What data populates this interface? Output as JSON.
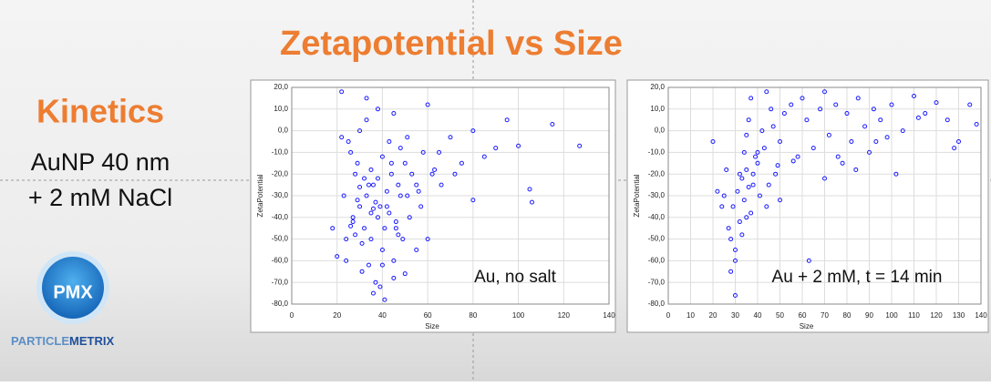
{
  "slide": {
    "title": "Zetapotential vs Size",
    "heading": "Kinetics",
    "lines": [
      "AuNP 40 nm",
      "+ 2 mM NaCl"
    ],
    "logo": "PMX",
    "brand": [
      "PARTICLE",
      "METRIX"
    ]
  },
  "chart_data": [
    {
      "type": "scatter",
      "x_label": "Size",
      "y_label": "ZetaPotential",
      "annotation": "Au, no salt",
      "color": "#1a1aff",
      "grid": true,
      "xlim": [
        0,
        140
      ],
      "xticks": [
        0,
        20,
        40,
        60,
        80,
        100,
        120,
        140
      ],
      "ylim": [
        -80,
        20
      ],
      "yticks": [
        {
          "value": 20,
          "label": "20,0"
        },
        {
          "value": 10,
          "label": "10,0"
        },
        {
          "value": 0,
          "label": "0,0"
        },
        {
          "value": -10,
          "label": "-10,0"
        },
        {
          "value": -20,
          "label": "-20,0"
        },
        {
          "value": -30,
          "label": "-30,0"
        },
        {
          "value": -40,
          "label": "-40,0"
        },
        {
          "value": -50,
          "label": "-50,0"
        },
        {
          "value": -60,
          "label": "-60,0"
        },
        {
          "value": -70,
          "label": "-70,0"
        },
        {
          "value": -80,
          "label": "-80,0"
        }
      ],
      "x": [
        22,
        25,
        28,
        30,
        32,
        33,
        35,
        36,
        38,
        40,
        42,
        44,
        46,
        48,
        50,
        52,
        55,
        58,
        60,
        24,
        27,
        29,
        31,
        34,
        37,
        39,
        41,
        43,
        45,
        47,
        49,
        51,
        53,
        26,
        30,
        33,
        36,
        38,
        40,
        42,
        35,
        37,
        28,
        32,
        45,
        48,
        55,
        62,
        65,
        20,
        18,
        23,
        27,
        31,
        35,
        39,
        43,
        47,
        51,
        56,
        60,
        24,
        29,
        34,
        38,
        41,
        44,
        46,
        33,
        36,
        30,
        26,
        40,
        22,
        50,
        57,
        63,
        45,
        70,
        80,
        85,
        95,
        100,
        105,
        115,
        127,
        90,
        80,
        106,
        72,
        66,
        75
      ],
      "values": [
        18,
        -5,
        -20,
        -35,
        -45,
        -30,
        -50,
        -25,
        -40,
        -55,
        -35,
        -20,
        -45,
        -30,
        -15,
        -40,
        -25,
        -10,
        -50,
        -60,
        -40,
        -15,
        -65,
        -25,
        -70,
        -35,
        -45,
        -5,
        -60,
        -25,
        -50,
        -30,
        -20,
        -10,
        0,
        5,
        -75,
        10,
        -62,
        -28,
        -38,
        -33,
        -48,
        -22,
        -68,
        -8,
        -55,
        -20,
        -10,
        -58,
        -45,
        -30,
        -42,
        -52,
        -18,
        -72,
        -38,
        -48,
        -3,
        -28,
        12,
        -50,
        -32,
        -62,
        -22,
        -78,
        -15,
        -42,
        15,
        -36,
        -26,
        -44,
        -12,
        -3,
        -66,
        -35,
        -18,
        8,
        -3,
        0,
        -12,
        5,
        -7,
        -27,
        3,
        -7,
        -8,
        -32,
        -33,
        -20,
        -25,
        -15
      ]
    },
    {
      "type": "scatter",
      "x_label": "Size",
      "y_label": "ZetaPotential",
      "annotation": "Au + 2 mM, t = 14 min",
      "color": "#1a1aff",
      "grid": true,
      "xlim": [
        0,
        140
      ],
      "xticks": [
        0,
        10,
        20,
        30,
        40,
        50,
        60,
        70,
        80,
        90,
        100,
        110,
        120,
        130,
        140
      ],
      "ylim": [
        -80,
        20
      ],
      "yticks": [
        {
          "value": 20,
          "label": "20,0"
        },
        {
          "value": 10,
          "label": "10,0"
        },
        {
          "value": 0,
          "label": "0,0"
        },
        {
          "value": -10,
          "label": "-10,0"
        },
        {
          "value": -20,
          "label": "-20,0"
        },
        {
          "value": -30,
          "label": "-30,0"
        },
        {
          "value": -40,
          "label": "-40,0"
        },
        {
          "value": -50,
          "label": "-50,0"
        },
        {
          "value": -60,
          "label": "-60,0"
        },
        {
          "value": -70,
          "label": "-70,0"
        },
        {
          "value": -80,
          "label": "-80,0"
        }
      ],
      "x": [
        20,
        25,
        28,
        30,
        32,
        34,
        35,
        36,
        38,
        40,
        42,
        44,
        46,
        48,
        50,
        52,
        55,
        58,
        60,
        62,
        65,
        68,
        70,
        72,
        75,
        78,
        80,
        82,
        85,
        88,
        90,
        92,
        95,
        98,
        100,
        105,
        110,
        115,
        120,
        125,
        130,
        135,
        138,
        27,
        29,
        31,
        33,
        35,
        37,
        39,
        41,
        43,
        45,
        47,
        49,
        30,
        32,
        34,
        36,
        38,
        40,
        28,
        30,
        33,
        26,
        24,
        22,
        35,
        37,
        44,
        50,
        56,
        63,
        70,
        76,
        84,
        93,
        102,
        112,
        128
      ],
      "values": [
        -5,
        -30,
        -50,
        -60,
        -20,
        -10,
        -40,
        5,
        -25,
        -15,
        0,
        -35,
        10,
        -20,
        -5,
        8,
        12,
        -12,
        15,
        5,
        -8,
        10,
        18,
        -2,
        12,
        -15,
        8,
        -5,
        15,
        2,
        -10,
        10,
        5,
        -3,
        12,
        0,
        16,
        8,
        13,
        5,
        -5,
        12,
        3,
        -45,
        -35,
        -28,
        -22,
        -18,
        -38,
        -12,
        -30,
        -8,
        -25,
        2,
        -16,
        -55,
        -42,
        -32,
        -26,
        -20,
        -10,
        -65,
        -76,
        -48,
        -18,
        -35,
        -28,
        -2,
        15,
        18,
        -32,
        -14,
        -60,
        -22,
        -12,
        -18,
        -5,
        -20,
        6,
        -8
      ]
    }
  ]
}
